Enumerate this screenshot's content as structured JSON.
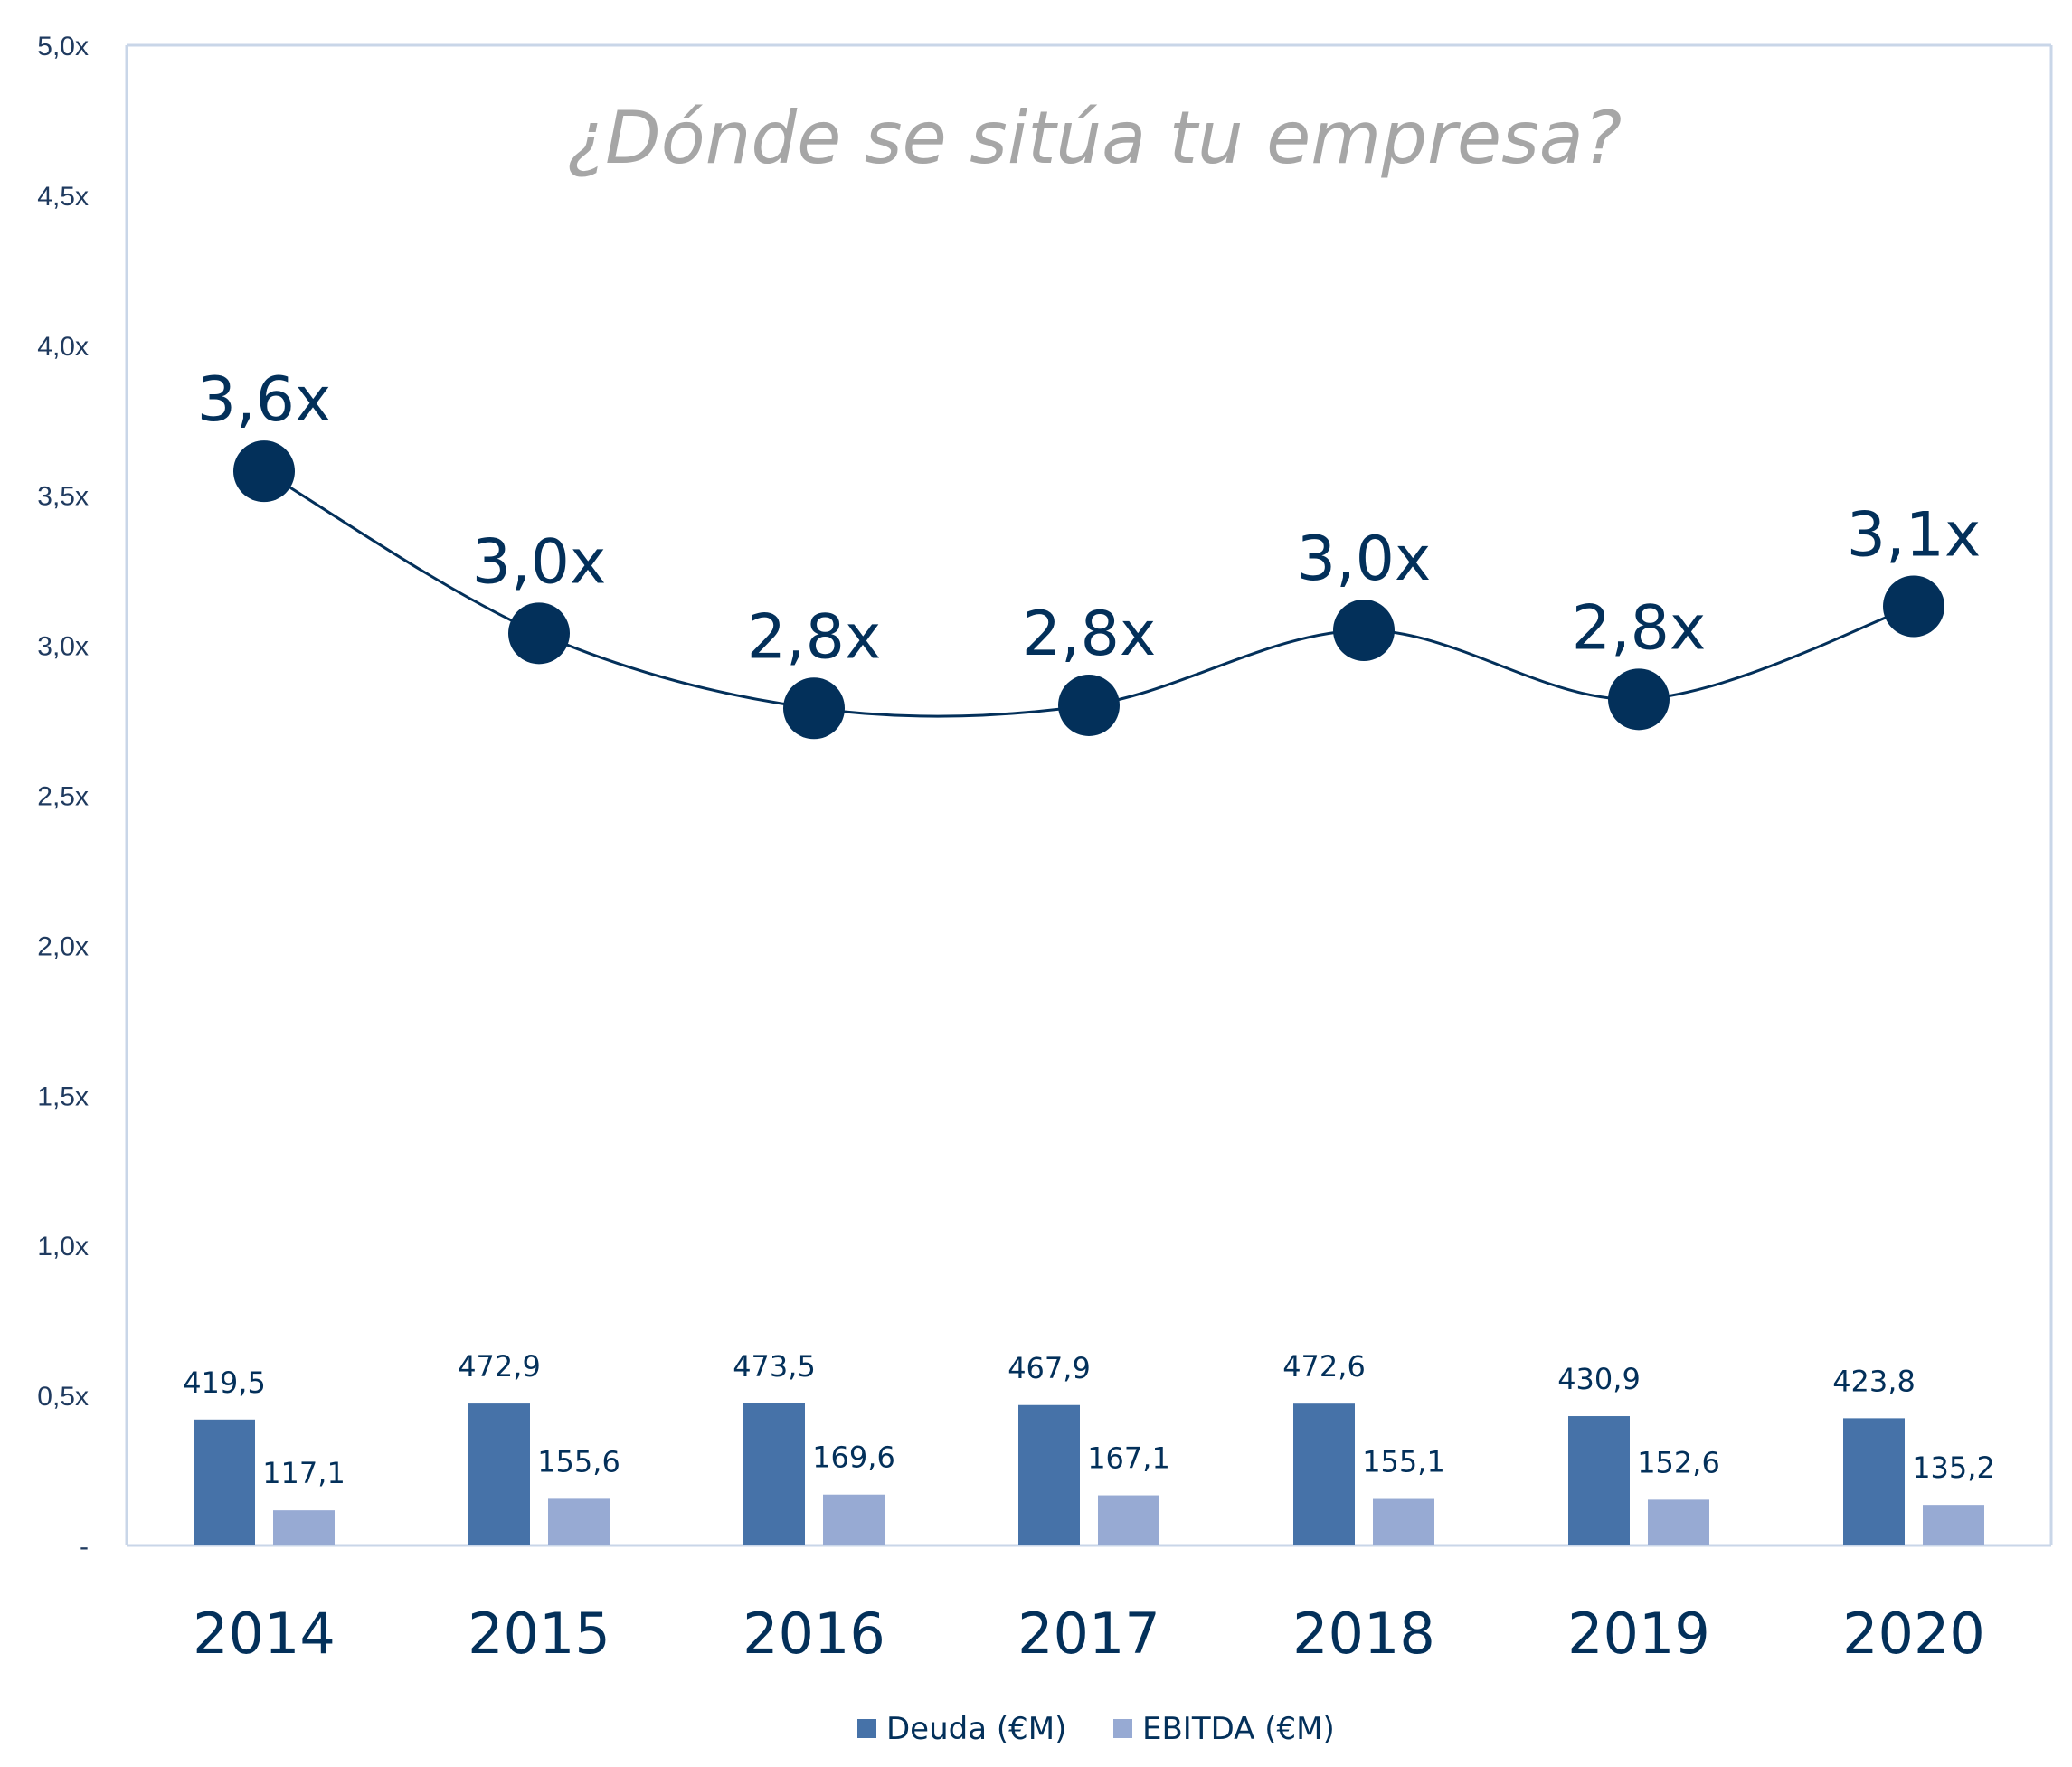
{
  "colors": {
    "navy": "#03305a",
    "deuda": "#4672a8",
    "ebitda": "#97aad3",
    "axis": "#c9d6e8",
    "title": "#a6a6a6",
    "tick": "#1f3a5f"
  },
  "chart_data": {
    "type": "bar",
    "title": "¿Dónde se sitúa tu empresa?",
    "categories": [
      "2014",
      "2015",
      "2016",
      "2017",
      "2018",
      "2019",
      "2020"
    ],
    "ylim": [
      0,
      5
    ],
    "yticks": [
      "-",
      "0,5x",
      "1,0x",
      "1,5x",
      "2,0x",
      "2,5x",
      "3,0x",
      "3,5x",
      "4,0x",
      "4,5x",
      "5,0x"
    ],
    "bar_max_value": 1500,
    "series": [
      {
        "name": "Deuda (€M)",
        "kind": "bar",
        "values": [
          419.5,
          472.9,
          473.5,
          467.9,
          472.6,
          430.9,
          423.8
        ],
        "labels": [
          "419,5",
          "472,9",
          "473,5",
          "467,9",
          "472,6",
          "430,9",
          "423,8"
        ]
      },
      {
        "name": "EBITDA (€M)",
        "kind": "bar",
        "values": [
          117.1,
          155.6,
          169.6,
          167.1,
          155.1,
          152.6,
          135.2
        ],
        "labels": [
          "117,1",
          "155,6",
          "169,6",
          "167,1",
          "155,1",
          "152,6",
          "135,2"
        ]
      },
      {
        "kind": "line",
        "values": [
          3.58,
          3.04,
          2.79,
          2.8,
          3.05,
          2.82,
          3.13
        ],
        "labels": [
          "3,6x",
          "3,0x",
          "2,8x",
          "2,8x",
          "3,0x",
          "2,8x",
          "3,1x"
        ]
      }
    ],
    "grid": false,
    "legend": "bottom"
  }
}
